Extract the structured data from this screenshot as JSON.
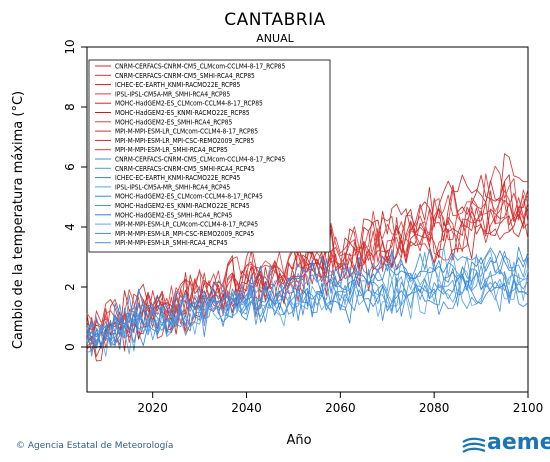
{
  "header": {
    "title": "CANTABRIA",
    "subtitle": "ANUAL"
  },
  "footer": {
    "credit": "© Agencia Estatal de Meteorología",
    "brand": "aemet"
  },
  "chart_data": {
    "type": "line",
    "title": "CANTABRIA",
    "subtitle": "ANUAL",
    "xlabel": "Año",
    "ylabel": "Cambio de la temperatura máxima (°C)",
    "xlim": [
      2006,
      2100
    ],
    "ylim": [
      -1.5,
      10
    ],
    "xticks": [
      2020,
      2040,
      2060,
      2080,
      2100
    ],
    "yticks": [
      0,
      2,
      4,
      6,
      8,
      10
    ],
    "zero_line": 0,
    "legend_position": "top-left",
    "colors": {
      "rcp85": "#d42a2a",
      "rcp45": "#3d8fe0"
    },
    "series": [
      {
        "name": "CNRM-CERFACS-CNRM-CM5_CLMcom-CCLM4-8-17_RCP85",
        "scenario": "rcp85",
        "color": "#e02b2b",
        "x": [
          2006,
          2015,
          2025,
          2035,
          2045,
          2055,
          2065,
          2075,
          2085,
          2095,
          2100
        ],
        "y": [
          0.2,
          1.0,
          1.5,
          1.9,
          2.3,
          2.7,
          3.1,
          3.5,
          4.0,
          4.6,
          4.3
        ]
      },
      {
        "name": "CNRM-CERFACS-CNRM-CM5_SMHI-RCA4_RCP85",
        "scenario": "rcp85",
        "color": "#d63333",
        "x": [
          2006,
          2015,
          2025,
          2035,
          2045,
          2055,
          2065,
          2075,
          2085,
          2095,
          2100
        ],
        "y": [
          0.4,
          0.9,
          1.4,
          1.8,
          2.2,
          2.6,
          3.0,
          3.4,
          3.9,
          4.4,
          4.6
        ]
      },
      {
        "name": "ICHEC-EC-EARTH_KNMI-RACMO22E_RCP85",
        "scenario": "rcp85",
        "color": "#cc2020",
        "x": [
          2006,
          2015,
          2025,
          2035,
          2045,
          2055,
          2065,
          2075,
          2085,
          2095,
          2100
        ],
        "y": [
          0.3,
          0.8,
          1.2,
          1.7,
          2.0,
          2.4,
          2.9,
          3.4,
          3.8,
          4.2,
          4.0
        ]
      },
      {
        "name": "IPSL-IPSL-CM5A-MR_SMHI-RCA4_RCP85",
        "scenario": "rcp85",
        "color": "#e23a3a",
        "x": [
          2006,
          2015,
          2025,
          2035,
          2045,
          2055,
          2065,
          2075,
          2085,
          2095,
          2100
        ],
        "y": [
          0.5,
          1.2,
          1.7,
          2.1,
          2.5,
          3.0,
          3.6,
          4.1,
          4.7,
          5.3,
          5.0
        ]
      },
      {
        "name": "MOHC-HadGEM2-ES_CLMcom-CCLM4-8-17_RCP85",
        "scenario": "rcp85",
        "color": "#d12424",
        "x": [
          2006,
          2015,
          2025,
          2035,
          2045,
          2055,
          2065,
          2075,
          2085,
          2095,
          2100
        ],
        "y": [
          0.4,
          1.1,
          1.6,
          2.0,
          2.6,
          3.1,
          3.7,
          4.3,
          4.9,
          5.5,
          5.2
        ]
      },
      {
        "name": "MOHC-HadGEM2-ES_KNMI-RACMO22E_RCP85",
        "scenario": "rcp85",
        "color": "#c91c1c",
        "x": [
          2006,
          2015,
          2025,
          2035,
          2045,
          2055,
          2065,
          2075,
          2085,
          2095,
          2100
        ],
        "y": [
          0.3,
          1.0,
          1.5,
          2.0,
          2.4,
          2.9,
          3.4,
          4.0,
          4.5,
          5.0,
          4.7
        ]
      },
      {
        "name": "MOHC-HadGEM2-ES_SMHI-RCA4_RCP85",
        "scenario": "rcp85",
        "color": "#e04040",
        "x": [
          2006,
          2015,
          2025,
          2035,
          2045,
          2055,
          2065,
          2075,
          2085,
          2095,
          2100
        ],
        "y": [
          0.5,
          1.0,
          1.6,
          2.1,
          2.5,
          3.0,
          3.5,
          4.1,
          4.6,
          5.1,
          4.8
        ]
      },
      {
        "name": "MPI-M-MPI-ESM-LR_CLMcom-CCLM4-8-17_RCP85",
        "scenario": "rcp85",
        "color": "#d83030",
        "x": [
          2006,
          2015,
          2025,
          2035,
          2045,
          2055,
          2065,
          2075,
          2085,
          2095,
          2100
        ],
        "y": [
          0.2,
          0.8,
          1.3,
          1.7,
          2.1,
          2.5,
          2.9,
          3.3,
          3.7,
          4.1,
          3.9
        ]
      },
      {
        "name": "MPI-M-MPI-ESM-LR_MPI-CSC-REMO2009_RCP85",
        "scenario": "rcp85",
        "color": "#cf2828",
        "x": [
          2006,
          2015,
          2025,
          2035,
          2045,
          2055,
          2065,
          2075,
          2085,
          2095,
          2100
        ],
        "y": [
          0.3,
          0.9,
          1.4,
          1.8,
          2.2,
          2.6,
          3.0,
          3.4,
          3.8,
          4.2,
          4.4
        ]
      },
      {
        "name": "MPI-M-MPI-ESM-LR_SMHI-RCA4_RCP85",
        "scenario": "rcp85",
        "color": "#e33535",
        "x": [
          2006,
          2015,
          2025,
          2035,
          2045,
          2055,
          2065,
          2075,
          2085,
          2095,
          2100
        ],
        "y": [
          0.4,
          0.9,
          1.3,
          1.8,
          2.2,
          2.6,
          3.1,
          3.5,
          3.9,
          4.3,
          4.1
        ]
      },
      {
        "name": "CNRM-CERFACS-CNRM-CM5_CLMcom-CCLM4-8-17_RCP45",
        "scenario": "rcp45",
        "color": "#3c8fe0",
        "x": [
          2006,
          2015,
          2025,
          2035,
          2045,
          2055,
          2065,
          2075,
          2085,
          2095,
          2100
        ],
        "y": [
          0.3,
          0.8,
          1.1,
          1.4,
          1.6,
          1.8,
          1.9,
          2.0,
          2.1,
          2.2,
          2.1
        ]
      },
      {
        "name": "CNRM-CERFACS-CNRM-CM5_SMHI-RCA4_RCP45",
        "scenario": "rcp45",
        "color": "#4a9ae6",
        "x": [
          2006,
          2015,
          2025,
          2035,
          2045,
          2055,
          2065,
          2075,
          2085,
          2095,
          2100
        ],
        "y": [
          0.2,
          0.7,
          1.0,
          1.3,
          1.5,
          1.7,
          1.8,
          1.9,
          2.0,
          2.1,
          2.0
        ]
      },
      {
        "name": "ICHEC-EC-EARTH_KNMI-RACMO22E_RCP45",
        "scenario": "rcp45",
        "color": "#2f82d6",
        "x": [
          2006,
          2015,
          2025,
          2035,
          2045,
          2055,
          2065,
          2075,
          2085,
          2095,
          2100
        ],
        "y": [
          0.2,
          0.6,
          0.9,
          1.2,
          1.4,
          1.6,
          1.7,
          1.8,
          1.9,
          2.0,
          1.9
        ]
      },
      {
        "name": "IPSL-IPSL-CM5A-MR_SMHI-RCA4_RCP45",
        "scenario": "rcp45",
        "color": "#5aa4ea",
        "x": [
          2006,
          2015,
          2025,
          2035,
          2045,
          2055,
          2065,
          2075,
          2085,
          2095,
          2100
        ],
        "y": [
          0.4,
          0.9,
          1.3,
          1.6,
          1.9,
          2.1,
          2.3,
          2.5,
          2.6,
          2.7,
          2.6
        ]
      },
      {
        "name": "MOHC-HadGEM2-ES_CLMcom-CCLM4-8-17_RCP45",
        "scenario": "rcp45",
        "color": "#3588dc",
        "x": [
          2006,
          2015,
          2025,
          2035,
          2045,
          2055,
          2065,
          2075,
          2085,
          2095,
          2100
        ],
        "y": [
          0.4,
          1.0,
          1.4,
          1.8,
          2.1,
          2.4,
          2.6,
          2.7,
          2.8,
          2.9,
          2.8
        ]
      },
      {
        "name": "MOHC-HadGEM2-ES_KNMI-RACMO22E_RCP45",
        "scenario": "rcp45",
        "color": "#4d96e2",
        "x": [
          2006,
          2015,
          2025,
          2035,
          2045,
          2055,
          2065,
          2075,
          2085,
          2095,
          2100
        ],
        "y": [
          0.3,
          0.9,
          1.3,
          1.7,
          2.0,
          2.2,
          2.4,
          2.5,
          2.6,
          2.7,
          2.6
        ]
      },
      {
        "name": "MOHC-HadGEM2-ES_SMHI-RCA4_RCP45",
        "scenario": "rcp45",
        "color": "#2c7ed2",
        "x": [
          2006,
          2015,
          2025,
          2035,
          2045,
          2055,
          2065,
          2075,
          2085,
          2095,
          2100
        ],
        "y": [
          0.4,
          0.9,
          1.3,
          1.6,
          1.9,
          2.2,
          2.4,
          2.5,
          2.6,
          2.7,
          2.5
        ]
      },
      {
        "name": "MPI-M-MPI-ESM-LR_CLMcom-CCLM4-8-17_RCP45",
        "scenario": "rcp45",
        "color": "#60a8ec",
        "x": [
          2006,
          2015,
          2025,
          2035,
          2045,
          2055,
          2065,
          2075,
          2085,
          2095,
          2100
        ],
        "y": [
          0.1,
          0.6,
          0.9,
          1.1,
          1.3,
          1.5,
          1.6,
          1.7,
          1.8,
          1.8,
          1.7
        ]
      },
      {
        "name": "MPI-M-MPI-ESM-LR_MPI-CSC-REMO2009_RCP45",
        "scenario": "rcp45",
        "color": "#3a8ade",
        "x": [
          2006,
          2015,
          2025,
          2035,
          2045,
          2055,
          2065,
          2075,
          2085,
          2095,
          2100
        ],
        "y": [
          0.2,
          0.6,
          0.9,
          1.2,
          1.4,
          1.5,
          1.6,
          1.7,
          1.8,
          1.9,
          1.8
        ]
      },
      {
        "name": "MPI-M-MPI-ESM-LR_SMHI-RCA4_RCP45",
        "scenario": "rcp45",
        "color": "#4593e0",
        "x": [
          2006,
          2015,
          2025,
          2035,
          2045,
          2055,
          2065,
          2075,
          2085,
          2095,
          2100
        ],
        "y": [
          0.2,
          0.7,
          1.0,
          1.2,
          1.4,
          1.6,
          1.7,
          1.8,
          1.9,
          2.0,
          1.9
        ]
      }
    ]
  }
}
